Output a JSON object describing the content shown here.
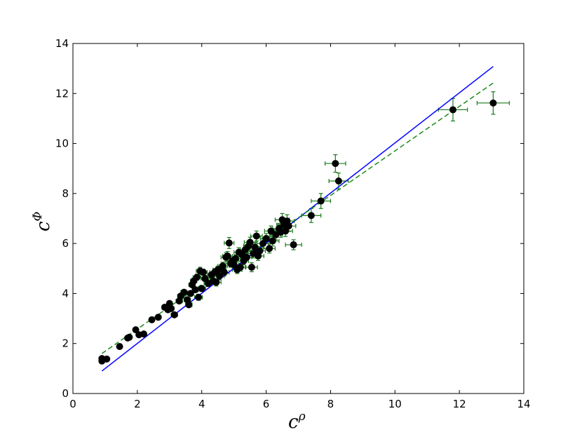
{
  "chart_data": {
    "type": "scatter",
    "title": "",
    "xlabel": "c",
    "xlabel_sup": "ρ",
    "ylabel": "c",
    "ylabel_sup": "Φ",
    "xlim": [
      0,
      14
    ],
    "ylim": [
      0,
      14
    ],
    "xticks": [
      "0",
      "2",
      "4",
      "6",
      "8",
      "10",
      "12",
      "14"
    ],
    "yticks": [
      "0",
      "2",
      "4",
      "6",
      "8",
      "10",
      "12",
      "14"
    ],
    "grid": false,
    "colors": {
      "points": "#000000",
      "errorbars": "#1a7a1a",
      "solid_line": "#0000ff",
      "dashed_line": "#1a8a1a"
    },
    "points": [
      {
        "x": 0.9,
        "y": 1.3,
        "ex": 0.05,
        "ey": 0.06
      },
      {
        "x": 0.9,
        "y": 1.4,
        "ex": 0.05,
        "ey": 0.06
      },
      {
        "x": 1.05,
        "y": 1.38,
        "ex": 0.05,
        "ey": 0.06
      },
      {
        "x": 1.45,
        "y": 1.88,
        "ex": 0.06,
        "ey": 0.06
      },
      {
        "x": 1.7,
        "y": 2.22,
        "ex": 0.06,
        "ey": 0.06
      },
      {
        "x": 1.75,
        "y": 2.25,
        "ex": 0.06,
        "ey": 0.06
      },
      {
        "x": 1.95,
        "y": 2.55,
        "ex": 0.06,
        "ey": 0.06
      },
      {
        "x": 2.05,
        "y": 2.35,
        "ex": 0.06,
        "ey": 0.06
      },
      {
        "x": 2.2,
        "y": 2.38,
        "ex": 0.06,
        "ey": 0.06
      },
      {
        "x": 2.45,
        "y": 2.95,
        "ex": 0.06,
        "ey": 0.06
      },
      {
        "x": 2.65,
        "y": 3.05,
        "ex": 0.07,
        "ey": 0.07
      },
      {
        "x": 2.85,
        "y": 3.45,
        "ex": 0.08,
        "ey": 0.08
      },
      {
        "x": 2.95,
        "y": 3.35,
        "ex": 0.08,
        "ey": 0.08
      },
      {
        "x": 3.0,
        "y": 3.6,
        "ex": 0.08,
        "ey": 0.08
      },
      {
        "x": 3.05,
        "y": 3.4,
        "ex": 0.08,
        "ey": 0.08
      },
      {
        "x": 3.15,
        "y": 3.15,
        "ex": 0.1,
        "ey": 0.08
      },
      {
        "x": 3.3,
        "y": 3.7,
        "ex": 0.1,
        "ey": 0.08
      },
      {
        "x": 3.35,
        "y": 3.9,
        "ex": 0.1,
        "ey": 0.1
      },
      {
        "x": 3.45,
        "y": 4.05,
        "ex": 0.1,
        "ey": 0.1
      },
      {
        "x": 3.55,
        "y": 3.75,
        "ex": 0.1,
        "ey": 0.1
      },
      {
        "x": 3.6,
        "y": 3.55,
        "ex": 0.1,
        "ey": 0.1
      },
      {
        "x": 3.65,
        "y": 4.0,
        "ex": 0.1,
        "ey": 0.1
      },
      {
        "x": 3.7,
        "y": 4.35,
        "ex": 0.1,
        "ey": 0.1
      },
      {
        "x": 3.75,
        "y": 4.5,
        "ex": 0.1,
        "ey": 0.12
      },
      {
        "x": 3.8,
        "y": 4.15,
        "ex": 0.1,
        "ey": 0.1
      },
      {
        "x": 3.85,
        "y": 4.65,
        "ex": 0.12,
        "ey": 0.12
      },
      {
        "x": 3.9,
        "y": 3.85,
        "ex": 0.12,
        "ey": 0.12
      },
      {
        "x": 3.95,
        "y": 4.9,
        "ex": 0.12,
        "ey": 0.15
      },
      {
        "x": 4.0,
        "y": 4.2,
        "ex": 0.12,
        "ey": 0.12
      },
      {
        "x": 4.05,
        "y": 4.85,
        "ex": 0.12,
        "ey": 0.12
      },
      {
        "x": 4.1,
        "y": 4.6,
        "ex": 0.12,
        "ey": 0.12
      },
      {
        "x": 4.2,
        "y": 4.4,
        "ex": 0.12,
        "ey": 0.12
      },
      {
        "x": 4.3,
        "y": 4.75,
        "ex": 0.12,
        "ey": 0.12
      },
      {
        "x": 4.35,
        "y": 4.5,
        "ex": 0.15,
        "ey": 0.15
      },
      {
        "x": 4.4,
        "y": 4.85,
        "ex": 0.15,
        "ey": 0.15
      },
      {
        "x": 4.45,
        "y": 4.45,
        "ex": 0.15,
        "ey": 0.15
      },
      {
        "x": 4.5,
        "y": 4.95,
        "ex": 0.15,
        "ey": 0.15
      },
      {
        "x": 4.55,
        "y": 4.7,
        "ex": 0.15,
        "ey": 0.15
      },
      {
        "x": 4.6,
        "y": 5.0,
        "ex": 0.15,
        "ey": 0.15
      },
      {
        "x": 4.65,
        "y": 5.1,
        "ex": 0.15,
        "ey": 0.15
      },
      {
        "x": 4.7,
        "y": 4.85,
        "ex": 0.15,
        "ey": 0.15
      },
      {
        "x": 4.75,
        "y": 5.45,
        "ex": 0.15,
        "ey": 0.18
      },
      {
        "x": 4.8,
        "y": 5.5,
        "ex": 0.15,
        "ey": 0.18
      },
      {
        "x": 4.85,
        "y": 6.02,
        "ex": 0.15,
        "ey": 0.22
      },
      {
        "x": 4.9,
        "y": 5.2,
        "ex": 0.15,
        "ey": 0.15
      },
      {
        "x": 4.95,
        "y": 5.3,
        "ex": 0.15,
        "ey": 0.15
      },
      {
        "x": 5.0,
        "y": 5.15,
        "ex": 0.15,
        "ey": 0.15
      },
      {
        "x": 5.05,
        "y": 5.4,
        "ex": 0.15,
        "ey": 0.15
      },
      {
        "x": 5.1,
        "y": 4.95,
        "ex": 0.15,
        "ey": 0.15
      },
      {
        "x": 5.15,
        "y": 5.65,
        "ex": 0.15,
        "ey": 0.18
      },
      {
        "x": 5.2,
        "y": 5.05,
        "ex": 0.15,
        "ey": 0.15
      },
      {
        "x": 5.25,
        "y": 5.55,
        "ex": 0.15,
        "ey": 0.15
      },
      {
        "x": 5.3,
        "y": 5.3,
        "ex": 0.15,
        "ey": 0.15
      },
      {
        "x": 5.35,
        "y": 5.75,
        "ex": 0.15,
        "ey": 0.18
      },
      {
        "x": 5.4,
        "y": 5.45,
        "ex": 0.15,
        "ey": 0.15
      },
      {
        "x": 5.45,
        "y": 5.9,
        "ex": 0.15,
        "ey": 0.18
      },
      {
        "x": 5.5,
        "y": 6.05,
        "ex": 0.18,
        "ey": 0.2
      },
      {
        "x": 5.55,
        "y": 5.05,
        "ex": 0.18,
        "ey": 0.18
      },
      {
        "x": 5.6,
        "y": 5.6,
        "ex": 0.18,
        "ey": 0.18
      },
      {
        "x": 5.65,
        "y": 5.85,
        "ex": 0.18,
        "ey": 0.18
      },
      {
        "x": 5.7,
        "y": 6.3,
        "ex": 0.18,
        "ey": 0.2
      },
      {
        "x": 5.75,
        "y": 5.5,
        "ex": 0.18,
        "ey": 0.18
      },
      {
        "x": 5.8,
        "y": 5.7,
        "ex": 0.18,
        "ey": 0.18
      },
      {
        "x": 5.9,
        "y": 6.0,
        "ex": 0.18,
        "ey": 0.18
      },
      {
        "x": 6.0,
        "y": 6.2,
        "ex": 0.18,
        "ey": 0.2
      },
      {
        "x": 6.1,
        "y": 5.8,
        "ex": 0.18,
        "ey": 0.18
      },
      {
        "x": 6.15,
        "y": 6.5,
        "ex": 0.2,
        "ey": 0.2
      },
      {
        "x": 6.2,
        "y": 6.1,
        "ex": 0.2,
        "ey": 0.2
      },
      {
        "x": 6.3,
        "y": 6.35,
        "ex": 0.2,
        "ey": 0.2
      },
      {
        "x": 6.4,
        "y": 6.6,
        "ex": 0.2,
        "ey": 0.2
      },
      {
        "x": 6.45,
        "y": 6.45,
        "ex": 0.2,
        "ey": 0.2
      },
      {
        "x": 6.5,
        "y": 6.95,
        "ex": 0.22,
        "ey": 0.25
      },
      {
        "x": 6.55,
        "y": 6.75,
        "ex": 0.22,
        "ey": 0.22
      },
      {
        "x": 6.6,
        "y": 6.5,
        "ex": 0.22,
        "ey": 0.22
      },
      {
        "x": 6.65,
        "y": 6.9,
        "ex": 0.22,
        "ey": 0.25
      },
      {
        "x": 6.7,
        "y": 6.7,
        "ex": 0.22,
        "ey": 0.22
      },
      {
        "x": 6.85,
        "y": 5.95,
        "ex": 0.25,
        "ey": 0.2
      },
      {
        "x": 7.4,
        "y": 7.12,
        "ex": 0.3,
        "ey": 0.28
      },
      {
        "x": 7.7,
        "y": 7.7,
        "ex": 0.3,
        "ey": 0.3
      },
      {
        "x": 8.15,
        "y": 9.2,
        "ex": 0.32,
        "ey": 0.35
      },
      {
        "x": 8.25,
        "y": 8.5,
        "ex": 0.3,
        "ey": 0.32
      },
      {
        "x": 11.8,
        "y": 11.35,
        "ex": 0.45,
        "ey": 0.45
      },
      {
        "x": 13.05,
        "y": 11.62,
        "ex": 0.5,
        "ey": 0.45
      }
    ],
    "lines": [
      {
        "style": "solid",
        "x": [
          0.9,
          13.05
        ],
        "y": [
          0.9,
          13.08
        ]
      },
      {
        "style": "dashed",
        "x": [
          0.9,
          13.05
        ],
        "y": [
          1.6,
          12.42
        ]
      }
    ]
  }
}
